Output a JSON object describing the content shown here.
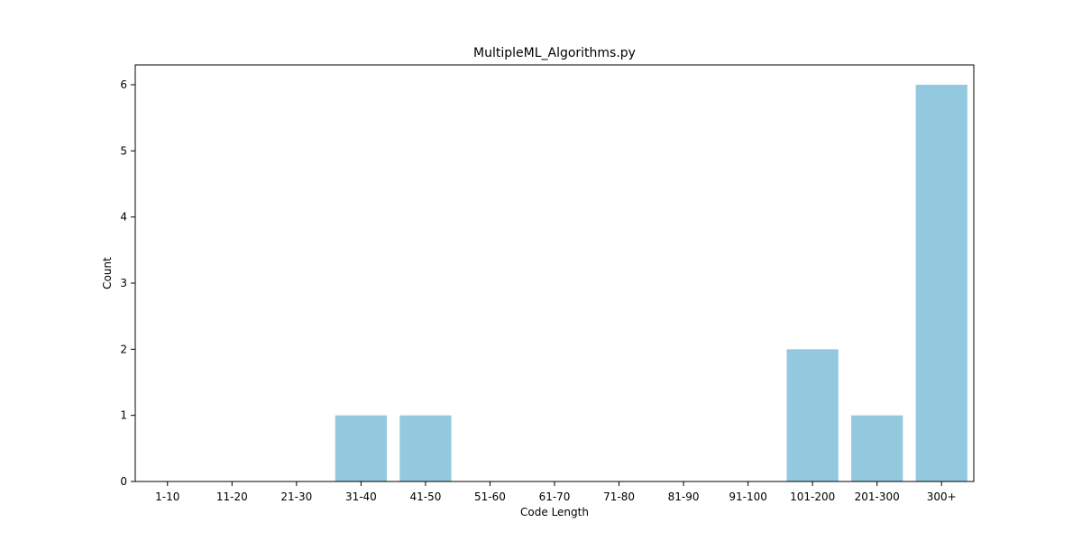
{
  "chart_data": {
    "type": "bar",
    "title": "MultipleML_Algorithms.py",
    "xlabel": "Code Length",
    "ylabel": "Count",
    "categories": [
      "1-10",
      "11-20",
      "21-30",
      "31-40",
      "41-50",
      "51-60",
      "61-70",
      "71-80",
      "81-90",
      "91-100",
      "101-200",
      "201-300",
      "300+"
    ],
    "values": [
      0,
      0,
      0,
      1,
      1,
      0,
      0,
      0,
      0,
      0,
      2,
      1,
      6
    ],
    "ylim": [
      0,
      6.3
    ],
    "yticks": [
      0,
      1,
      2,
      3,
      4,
      5,
      6
    ],
    "grid": false,
    "legend": "none",
    "bar_color": "#92c9df"
  }
}
